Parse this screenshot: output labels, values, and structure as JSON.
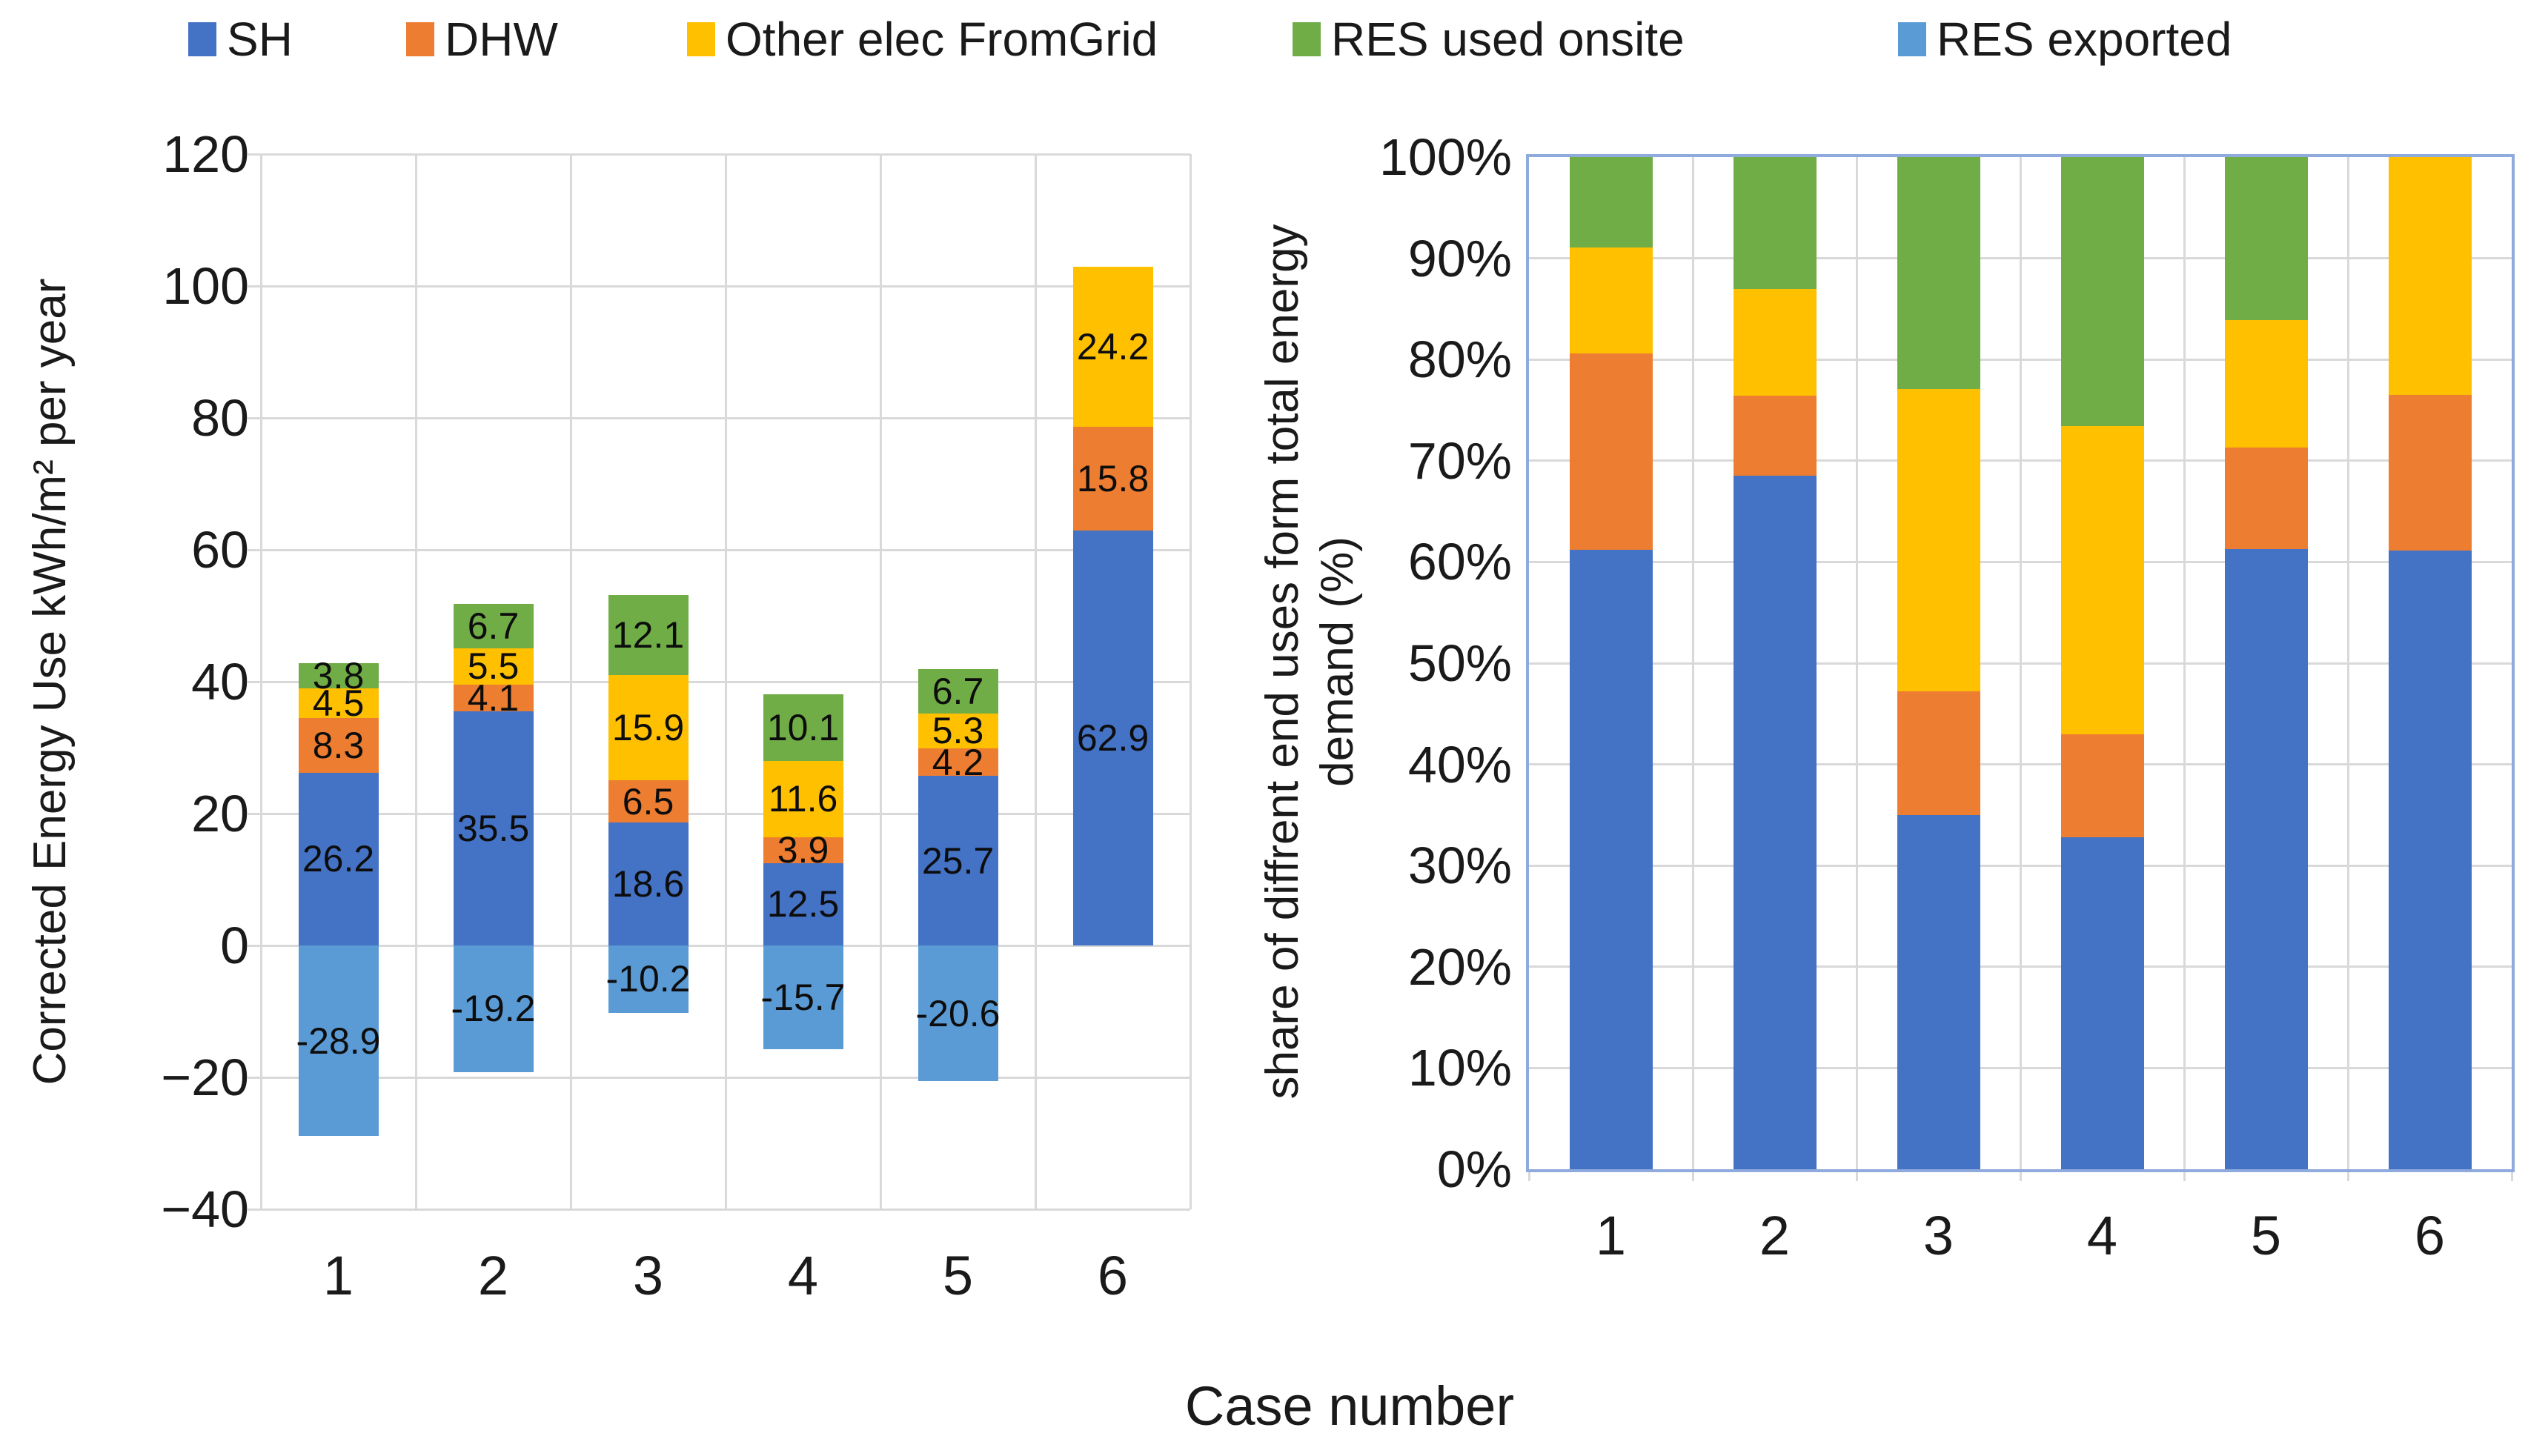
{
  "legend": {
    "items": [
      {
        "label": "SH",
        "color": "#4472C4"
      },
      {
        "label": "DHW",
        "color": "#ED7D31"
      },
      {
        "label": "Other elec FromGrid",
        "color": "#FFC000"
      },
      {
        "label": "RES used onsite",
        "color": "#70AD47"
      },
      {
        "label": "RES exported",
        "color": "#5B9BD5"
      }
    ]
  },
  "xlabel": "Case number",
  "colors": {
    "sh": "#4472C4",
    "dhw": "#ED7D31",
    "other_elec": "#FFC000",
    "res_onsite": "#70AD47",
    "res_exported": "#5B9BD5",
    "gridline": "#d9d9d9",
    "right_plot_border": "#8faadc"
  },
  "chart_data": [
    {
      "type": "bar",
      "stacked": true,
      "categories": [
        "1",
        "2",
        "3",
        "4",
        "5",
        "6"
      ],
      "ylabel": "Corrected Energy Use kWh/m² per year",
      "ylim": [
        -40,
        120
      ],
      "ytick_step": 20,
      "grid": true,
      "legend_position": "top",
      "data_labels": true,
      "series": [
        {
          "name": "SH",
          "color": "#4472C4",
          "values": [
            26.2,
            35.5,
            18.6,
            12.5,
            25.7,
            62.9
          ]
        },
        {
          "name": "DHW",
          "color": "#ED7D31",
          "values": [
            8.3,
            4.1,
            6.5,
            3.9,
            4.2,
            15.8
          ]
        },
        {
          "name": "Other elec FromGrid",
          "color": "#FFC000",
          "values": [
            4.5,
            5.5,
            15.9,
            11.6,
            5.3,
            24.2
          ]
        },
        {
          "name": "RES used onsite",
          "color": "#70AD47",
          "values": [
            3.8,
            6.7,
            12.1,
            10.1,
            6.7,
            0
          ]
        },
        {
          "name": "RES exported",
          "color": "#5B9BD5",
          "values": [
            -28.9,
            -19.2,
            -10.2,
            -15.7,
            -20.6,
            0
          ]
        }
      ]
    },
    {
      "type": "bar",
      "stacked": true,
      "percent": true,
      "categories": [
        "1",
        "2",
        "3",
        "4",
        "5",
        "6"
      ],
      "ylabel_line1": "share of diffrent end uses form total energy",
      "ylabel_line2": "demand (%)",
      "ylim_percent": [
        0,
        100
      ],
      "ytick_step_percent": 10,
      "grid": true,
      "series": [
        {
          "name": "SH",
          "color": "#4472C4",
          "values": [
            61.2,
            68.5,
            35.0,
            32.8,
            61.3,
            61.1
          ]
        },
        {
          "name": "DHW",
          "color": "#ED7D31",
          "values": [
            19.4,
            7.9,
            12.2,
            10.2,
            10.0,
            15.4
          ]
        },
        {
          "name": "Other elec FromGrid",
          "color": "#FFC000",
          "values": [
            10.5,
            10.6,
            29.9,
            30.4,
            12.6,
            23.5
          ]
        },
        {
          "name": "RES used onsite",
          "color": "#70AD47",
          "values": [
            8.9,
            13.0,
            22.9,
            26.6,
            16.1,
            0
          ]
        }
      ]
    }
  ]
}
